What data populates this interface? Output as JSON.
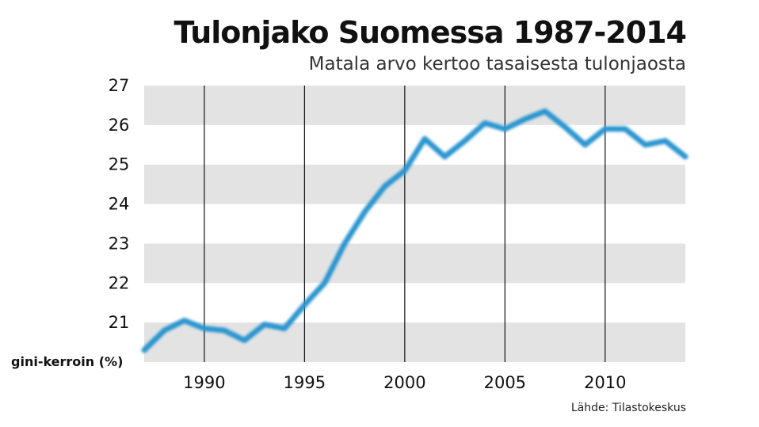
{
  "title": "Tulonjako Suomessa 1987-2014",
  "subtitle": "Matala arvo kertoo tasaisesta tulonjaosta",
  "source": "Lähde: Tilastokeskus",
  "colors": {
    "line": "#2b95d0",
    "band": "#e3e3e3",
    "vline": "#111111",
    "text": "#111111"
  },
  "chart_data": {
    "type": "line",
    "title": "Tulonjako Suomessa 1987-2014",
    "subtitle": "Matala arvo kertoo tasaisesta tulonjaosta",
    "xlabel": "",
    "ylabel": "gini-kerroin (%)",
    "xlim": [
      1987,
      2014
    ],
    "ylim": [
      20,
      27
    ],
    "x_ticks": [
      1990,
      1995,
      2000,
      2005,
      2010
    ],
    "y_ticks": [
      21,
      22,
      23,
      24,
      25,
      26,
      27
    ],
    "grid": "horizontal alternating bands, vertical lines at x ticks",
    "legend": "none",
    "series": [
      {
        "x": [
          1987,
          1988,
          1989,
          1990,
          1991,
          1992,
          1993,
          1994,
          1995,
          1996,
          1997,
          1998,
          1999,
          2000,
          2001,
          2002,
          2003,
          2004,
          2005,
          2006,
          2007,
          2008,
          2009,
          2010,
          2011,
          2012,
          2013,
          2014
        ],
        "values": [
          20.3,
          20.8,
          21.05,
          20.85,
          20.8,
          20.55,
          20.95,
          20.85,
          21.45,
          22.0,
          23.0,
          23.8,
          24.45,
          24.85,
          25.65,
          25.2,
          25.6,
          26.05,
          25.9,
          26.15,
          26.35,
          25.95,
          25.5,
          25.9,
          25.9,
          25.5,
          25.6,
          25.2
        ]
      }
    ]
  }
}
